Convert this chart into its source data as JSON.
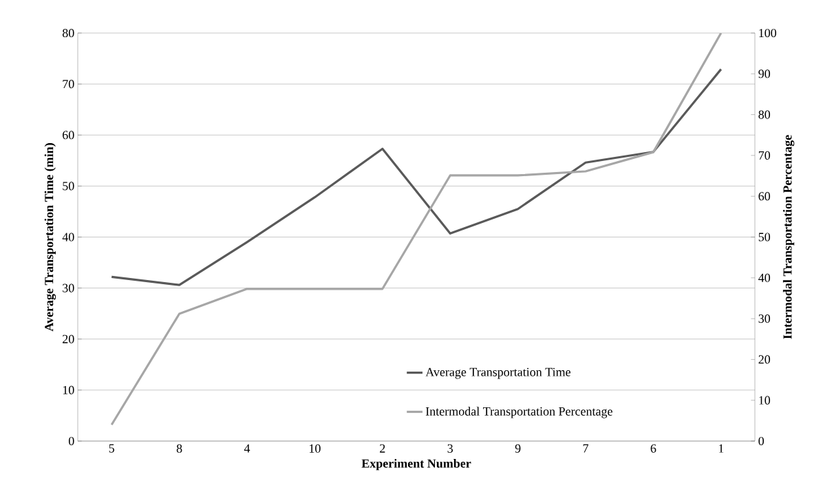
{
  "chart_data": {
    "type": "line",
    "xlabel": "Experiment Number",
    "ylabel": "Average Transportation Time (min)",
    "y2label": "Intermodal Transportation Percentage",
    "categories": [
      "5",
      "8",
      "4",
      "10",
      "2",
      "3",
      "9",
      "7",
      "6",
      "1"
    ],
    "series": [
      {
        "name": "Average Transportation Time",
        "color": "#595959",
        "values": [
          32.2,
          30.6,
          39.0,
          47.8,
          57.3,
          40.7,
          45.5,
          54.6,
          56.7,
          72.9
        ]
      },
      {
        "name": "Intermodal Transportation Percentage",
        "color": "#a6a6a6",
        "axis": "y2",
        "values": [
          4.0,
          31.2,
          37.3,
          37.3,
          37.3,
          65.1,
          65.1,
          66.1,
          70.8,
          100
        ]
      }
    ],
    "ylim": [
      0,
      80
    ],
    "yticks": [
      0,
      10,
      20,
      30,
      40,
      50,
      60,
      70,
      80
    ],
    "y2lim": [
      0,
      100
    ],
    "y2ticks": [
      0,
      10,
      20,
      30,
      40,
      50,
      60,
      70,
      80,
      90,
      100
    ],
    "grid": "y",
    "legend": "bottom right",
    "marker": "none",
    "line_style": "solid"
  }
}
